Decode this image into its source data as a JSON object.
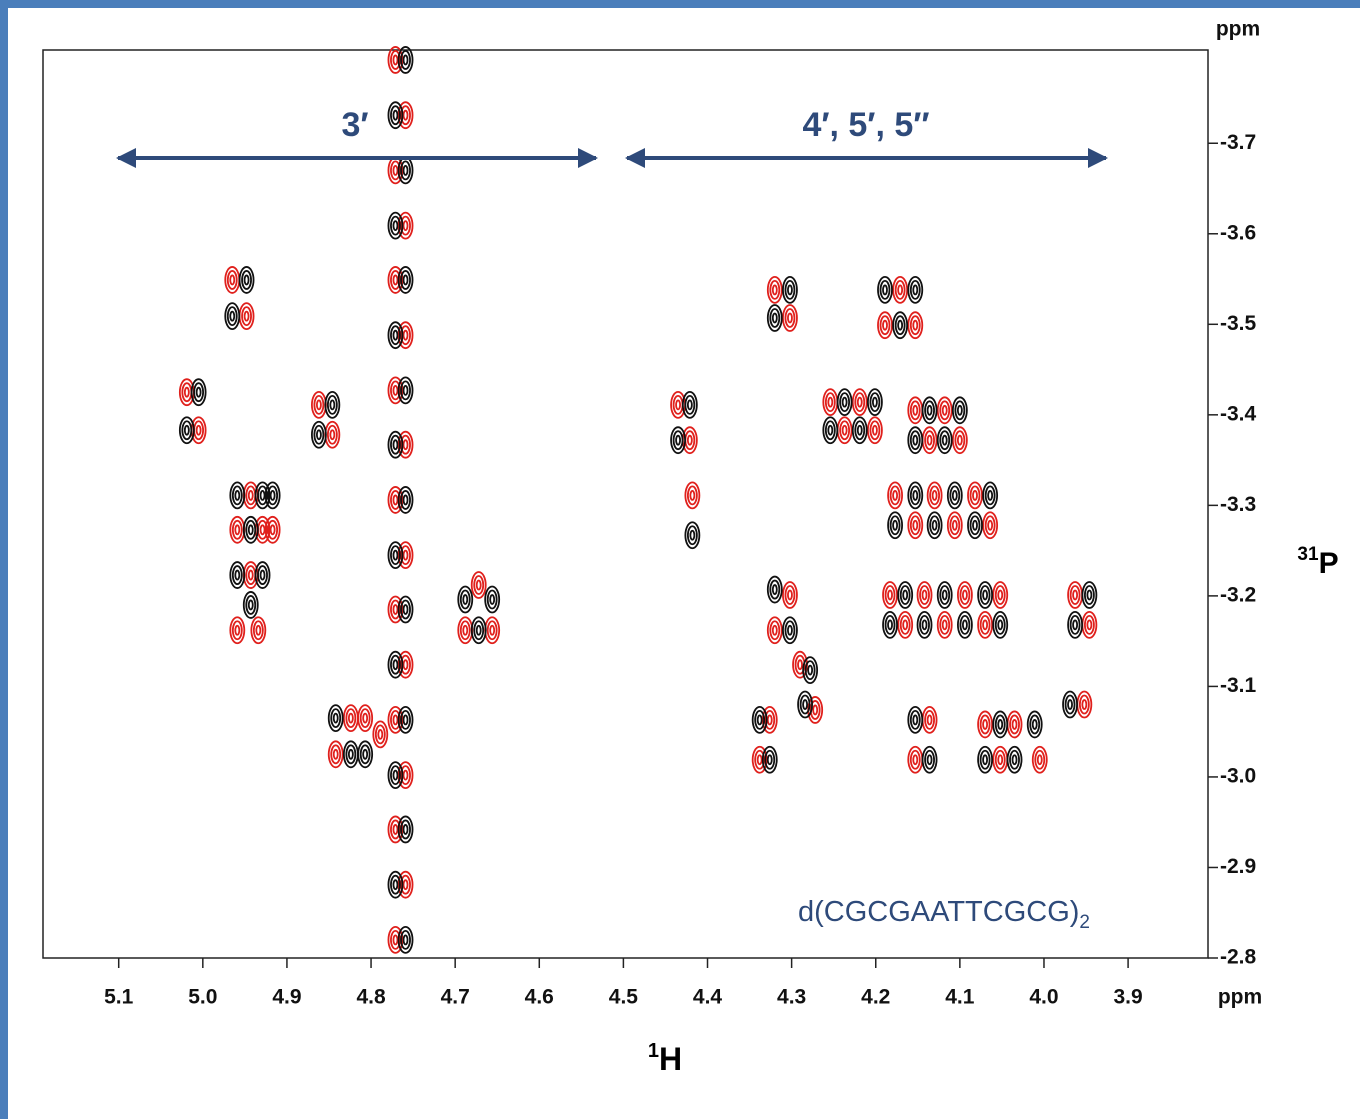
{
  "chart_data": {
    "type": "contour-peaks",
    "x_unit": "ppm",
    "y_unit": "ppm",
    "x_label": {
      "sup": "1",
      "text": "H"
    },
    "y_label": {
      "sup": "31",
      "text": "P"
    },
    "annotations": [
      {
        "text": "3′"
      },
      {
        "text": "4′, 5′, 5′′"
      },
      {
        "text": "d(CGCGAATTCGCG)",
        "sub": "2"
      }
    ],
    "xlim": [
      5.19,
      3.805
    ],
    "ylim": [
      -2.8,
      -3.803
    ],
    "xticks": [
      5.1,
      {
        "value": 5,
        "label": "5.0"
      },
      4.9,
      4.8,
      4.7,
      4.6,
      4.5,
      4.4,
      4.3,
      4.2,
      4.1,
      {
        "value": 4,
        "label": "4.0"
      },
      3.9
    ],
    "yticks": [
      -3.7,
      -3.6,
      -3.5,
      -3.4,
      -3.3,
      -3.2,
      -3.1,
      {
        "value": -3,
        "label": "-3.0"
      },
      -2.9,
      -2.8
    ],
    "series": [
      {
        "color": "#e0201c",
        "x": [
          5.019,
          5.005,
          4.965,
          4.948,
          4.943,
          4.959,
          4.929,
          4.917,
          4.943,
          4.959,
          4.934,
          4.862,
          4.846,
          4.824,
          4.807,
          4.842,
          4.789,
          4.771,
          4.771,
          4.771,
          4.771,
          4.771,
          4.771,
          4.771,
          4.771,
          4.771,
          4.759,
          4.759,
          4.759,
          4.759,
          4.759,
          4.759,
          4.759,
          4.759,
          4.672,
          4.688,
          4.656,
          4.435,
          4.421,
          4.418,
          4.32,
          4.302,
          4.326,
          4.338,
          4.302,
          4.32,
          4.29,
          4.272,
          4.254,
          4.219,
          4.237,
          4.201,
          4.171,
          4.189,
          4.153,
          4.153,
          4.118,
          4.136,
          4.1,
          4.177,
          4.13,
          4.082,
          4.153,
          4.106,
          4.064,
          4.183,
          4.142,
          4.094,
          4.052,
          4.165,
          4.118,
          4.07,
          4.136,
          4.153,
          4.07,
          4.035,
          4.052,
          4.005,
          3.963,
          3.946,
          3.952
        ],
        "y": [
          -3.425,
          -3.383,
          -3.549,
          -3.509,
          -3.311,
          -3.273,
          -3.273,
          -3.273,
          -3.223,
          -3.162,
          -3.162,
          -3.411,
          -3.378,
          -3.065,
          -3.065,
          -3.025,
          -3.047,
          -3.792,
          -3.67,
          -3.549,
          -3.427,
          -3.306,
          -3.185,
          -3.063,
          -2.942,
          -2.82,
          -3.731,
          -3.609,
          -3.488,
          -3.367,
          -3.245,
          -3.124,
          -3.002,
          -2.881,
          -3.212,
          -3.162,
          -3.162,
          -3.411,
          -3.372,
          -3.311,
          -3.538,
          -3.507,
          -3.063,
          -3.019,
          -3.201,
          -3.162,
          -3.124,
          -3.074,
          -3.414,
          -3.414,
          -3.383,
          -3.383,
          -3.538,
          -3.499,
          -3.499,
          -3.405,
          -3.405,
          -3.372,
          -3.372,
          -3.311,
          -3.311,
          -3.311,
          -3.278,
          -3.278,
          -3.278,
          -3.201,
          -3.201,
          -3.201,
          -3.201,
          -3.168,
          -3.168,
          -3.168,
          -3.063,
          -3.019,
          -3.058,
          -3.058,
          -3.019,
          -3.019,
          -3.201,
          -3.168,
          -3.08
        ]
      },
      {
        "color": "#111111",
        "x": [
          5.005,
          5.019,
          4.948,
          4.965,
          4.959,
          4.929,
          4.917,
          4.943,
          4.959,
          4.929,
          4.943,
          4.846,
          4.862,
          4.842,
          4.824,
          4.807,
          4.759,
          4.759,
          4.759,
          4.759,
          4.759,
          4.759,
          4.759,
          4.759,
          4.759,
          4.771,
          4.771,
          4.771,
          4.771,
          4.771,
          4.771,
          4.771,
          4.771,
          4.688,
          4.656,
          4.672,
          4.421,
          4.435,
          4.418,
          4.302,
          4.32,
          4.338,
          4.326,
          4.32,
          4.302,
          4.278,
          4.284,
          4.237,
          4.201,
          4.254,
          4.219,
          4.189,
          4.153,
          4.171,
          4.136,
          4.1,
          4.153,
          4.118,
          4.153,
          4.106,
          4.064,
          4.177,
          4.13,
          4.082,
          4.165,
          4.118,
          4.07,
          4.183,
          4.142,
          4.094,
          4.052,
          4.153,
          4.136,
          4.052,
          4.011,
          4.07,
          4.035,
          3.946,
          3.963,
          3.969
        ],
        "y": [
          -3.425,
          -3.383,
          -3.549,
          -3.509,
          -3.311,
          -3.311,
          -3.311,
          -3.273,
          -3.223,
          -3.223,
          -3.19,
          -3.411,
          -3.378,
          -3.065,
          -3.025,
          -3.025,
          -3.792,
          -3.67,
          -3.549,
          -3.427,
          -3.306,
          -3.185,
          -3.063,
          -2.942,
          -2.82,
          -3.731,
          -3.609,
          -3.488,
          -3.367,
          -3.245,
          -3.124,
          -3.002,
          -2.881,
          -3.196,
          -3.196,
          -3.162,
          -3.411,
          -3.372,
          -3.267,
          -3.538,
          -3.507,
          -3.063,
          -3.019,
          -3.207,
          -3.162,
          -3.118,
          -3.08,
          -3.414,
          -3.414,
          -3.383,
          -3.383,
          -3.538,
          -3.538,
          -3.499,
          -3.405,
          -3.405,
          -3.372,
          -3.372,
          -3.311,
          -3.311,
          -3.311,
          -3.278,
          -3.278,
          -3.278,
          -3.201,
          -3.201,
          -3.201,
          -3.168,
          -3.168,
          -3.168,
          -3.168,
          -3.063,
          -3.019,
          -3.058,
          -3.058,
          -3.019,
          -3.019,
          -3.201,
          -3.168,
          -3.08
        ]
      }
    ]
  }
}
